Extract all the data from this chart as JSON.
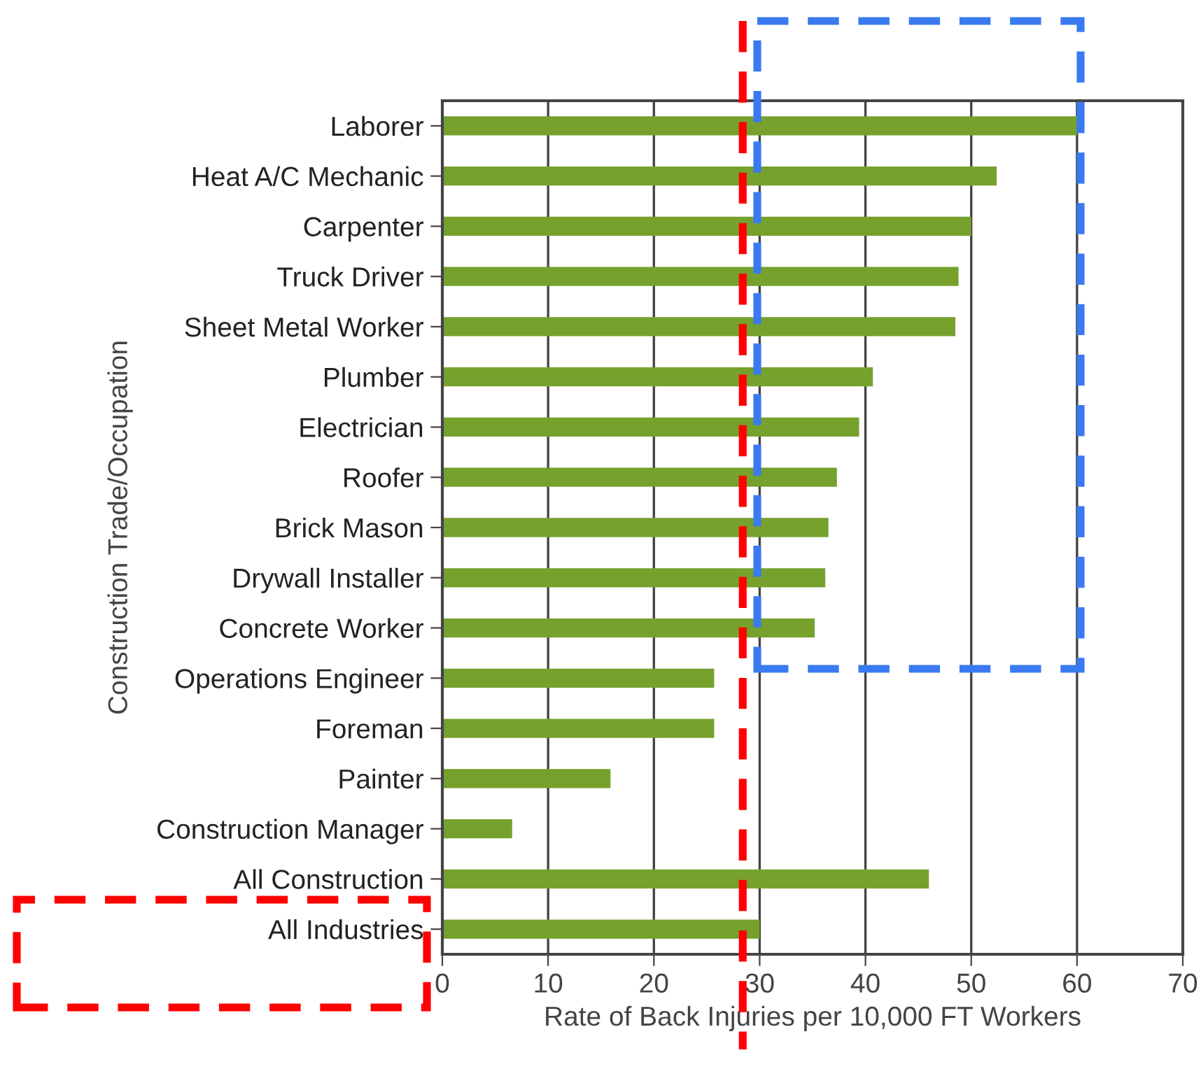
{
  "chart_data": {
    "type": "bar",
    "orientation": "horizontal",
    "xlabel": "Rate of Back Injuries per 10,000 FT Workers",
    "ylabel": "Construction Trade/Occupation",
    "categories": [
      "Laborer",
      "Heat A/C Mechanic",
      "Carpenter",
      "Truck Driver",
      "Sheet Metal Worker",
      "Plumber",
      "Electrician",
      "Roofer",
      "Brick Mason",
      "Drywall Installer",
      "Concrete Worker",
      "Operations Engineer",
      "Foreman",
      "Painter",
      "Construction Manager",
      "All Construction",
      "All Industries"
    ],
    "values": [
      60,
      52.4,
      50,
      48.8,
      48.5,
      40.7,
      39.4,
      37.3,
      36.5,
      36.2,
      35.2,
      25.7,
      25.7,
      15.9,
      6.6,
      46,
      30
    ],
    "color": "#76a12d",
    "xlim": [
      0,
      70
    ],
    "xticks": [
      0,
      10,
      20,
      30,
      40,
      50,
      60,
      70
    ],
    "grid": "x",
    "ref_lines": [
      {
        "axis": "x",
        "value": 28.4,
        "color": "#ff0000",
        "line_style": "dashed"
      }
    ]
  }
}
